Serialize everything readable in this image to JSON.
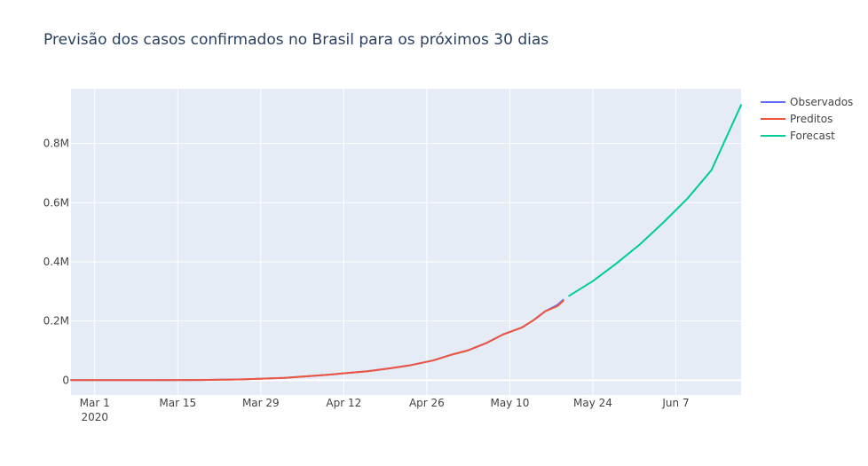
{
  "chart_data": {
    "type": "line",
    "title": "Previsão dos casos confirmados no Brasil para os próximos 30 dias",
    "xlabel": "",
    "ylabel": "",
    "x_axis": {
      "type": "date",
      "range": [
        "2020-02-26",
        "2020-06-18"
      ],
      "ticks": [
        {
          "date": "2020-03-01",
          "label": "Mar 1",
          "sublabel": "2020"
        },
        {
          "date": "2020-03-15",
          "label": "Mar 15"
        },
        {
          "date": "2020-03-29",
          "label": "Mar 29"
        },
        {
          "date": "2020-04-12",
          "label": "Apr 12"
        },
        {
          "date": "2020-04-26",
          "label": "Apr 26"
        },
        {
          "date": "2020-05-10",
          "label": "May 10"
        },
        {
          "date": "2020-05-24",
          "label": "May 24"
        },
        {
          "date": "2020-06-07",
          "label": "Jun 7"
        }
      ]
    },
    "y_axis": {
      "range": [
        -50000,
        985000
      ],
      "ticks": [
        {
          "value": 0,
          "label": "0"
        },
        {
          "value": 200000,
          "label": "0.2M"
        },
        {
          "value": 400000,
          "label": "0.4M"
        },
        {
          "value": 600000,
          "label": "0.6M"
        },
        {
          "value": 800000,
          "label": "0.8M"
        }
      ]
    },
    "grid": true,
    "legend_position": "top-right",
    "series": [
      {
        "name": "Observados",
        "color": "#636efa",
        "points": [
          [
            "2020-02-26",
            1
          ],
          [
            "2020-03-05",
            8
          ],
          [
            "2020-03-12",
            77
          ],
          [
            "2020-03-19",
            621
          ],
          [
            "2020-03-26",
            2915
          ],
          [
            "2020-04-02",
            8044
          ],
          [
            "2020-04-09",
            17857
          ],
          [
            "2020-04-16",
            30425
          ],
          [
            "2020-04-20",
            40581
          ],
          [
            "2020-04-23",
            49492
          ],
          [
            "2020-04-27",
            66501
          ],
          [
            "2020-04-30",
            85380
          ],
          [
            "2020-05-03",
            101147
          ],
          [
            "2020-05-06",
            125218
          ],
          [
            "2020-05-09",
            155939
          ],
          [
            "2020-05-12",
            177589
          ],
          [
            "2020-05-14",
            202918
          ],
          [
            "2020-05-16",
            233142
          ],
          [
            "2020-05-18",
            254220
          ],
          [
            "2020-05-19",
            271628
          ]
        ]
      },
      {
        "name": "Preditos",
        "color": "#ef553b",
        "points": [
          [
            "2020-02-26",
            1
          ],
          [
            "2020-03-05",
            8
          ],
          [
            "2020-03-12",
            77
          ],
          [
            "2020-03-19",
            621
          ],
          [
            "2020-03-26",
            2915
          ],
          [
            "2020-04-02",
            8044
          ],
          [
            "2020-04-09",
            17857
          ],
          [
            "2020-04-16",
            30425
          ],
          [
            "2020-04-20",
            40581
          ],
          [
            "2020-04-23",
            49492
          ],
          [
            "2020-04-27",
            66501
          ],
          [
            "2020-04-30",
            85380
          ],
          [
            "2020-05-03",
            101147
          ],
          [
            "2020-05-06",
            125218
          ],
          [
            "2020-05-09",
            155939
          ],
          [
            "2020-05-12",
            177589
          ],
          [
            "2020-05-14",
            202918
          ],
          [
            "2020-05-16",
            233142
          ],
          [
            "2020-05-18",
            250000
          ],
          [
            "2020-05-19",
            268000
          ]
        ]
      },
      {
        "name": "Forecast",
        "color": "#00cc96",
        "points": [
          [
            "2020-05-20",
            285000
          ],
          [
            "2020-05-24",
            335000
          ],
          [
            "2020-05-28",
            395000
          ],
          [
            "2020-06-01",
            460000
          ],
          [
            "2020-06-05",
            535000
          ],
          [
            "2020-06-09",
            615000
          ],
          [
            "2020-06-13",
            710000
          ],
          [
            "2020-06-18",
            930000
          ]
        ]
      }
    ]
  }
}
